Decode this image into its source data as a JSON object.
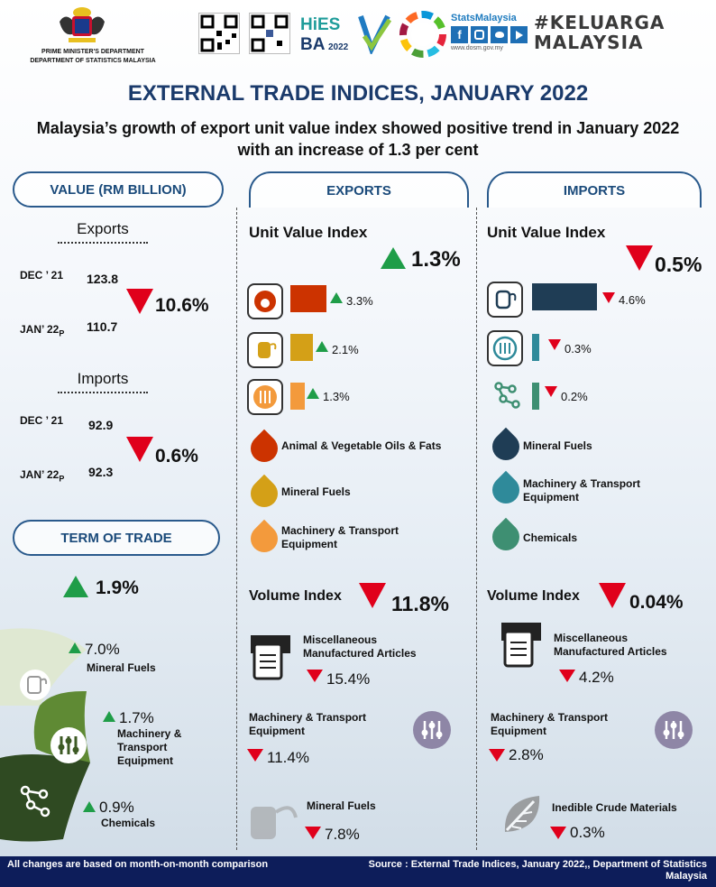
{
  "header": {
    "dept_line1": "PRIME MINISTER'S DEPARTMENT",
    "dept_line2": "DEPARTMENT OF STATISTICS MALAYSIA",
    "hies_logo": "HIES BA 2022",
    "stats_brand": "StatsMalaysia",
    "stats_url": "www.dosm.gov.my",
    "keluarga": "#KELUARGA MALAYSIA"
  },
  "title": "EXTERNAL TRADE INDICES, JANUARY 2022",
  "subtitle": "Malaysia’s growth of export unit value index showed positive trend in January 2022 with an increase of 1.3 per cent",
  "value_section": {
    "heading": "VALUE (RM BILLION)",
    "exports_label": "Exports",
    "exports_rows": [
      {
        "month": "DEC ’ 21",
        "value": "123.8"
      },
      {
        "month": "JAN’ 22",
        "suffix": "P",
        "value": "110.7"
      }
    ],
    "exports_change": "10.6%",
    "imports_label": "Imports",
    "imports_rows": [
      {
        "month": "DEC ’ 21",
        "value": "92.9"
      },
      {
        "month": "JAN’ 22",
        "suffix": "P",
        "value": "92.3"
      }
    ],
    "imports_change": "0.6%"
  },
  "term_of_trade": {
    "heading": "TERM OF TRADE",
    "change": "1.9%",
    "items": [
      {
        "pct": "7.0%",
        "label": "Mineral Fuels",
        "direction": "up"
      },
      {
        "pct": "1.7%",
        "label": "Machinery & Transport Equipment",
        "label_lines": [
          "Machinery &",
          "Transport",
          "Equipment"
        ],
        "direction": "up"
      },
      {
        "pct": "0.9%",
        "label": "Chemicals",
        "direction": "up"
      }
    ]
  },
  "exports": {
    "heading": "EXPORTS",
    "uvi_label": "Unit Value Index",
    "uvi_change": "1.3%",
    "uvi_bars": [
      {
        "pct": "3.3%",
        "direction": "up",
        "color": "#cc3300",
        "level": 3.3
      },
      {
        "pct": "2.1%",
        "direction": "up",
        "color": "#d4a017",
        "level": 2.1
      },
      {
        "pct": "1.3%",
        "direction": "up",
        "color": "#f39a3c",
        "level": 1.3
      }
    ],
    "legend": [
      {
        "label": "Animal & Vegetable Oils & Fats",
        "color": "#cc3300"
      },
      {
        "label": "Mineral Fuels",
        "color": "#d4a017"
      },
      {
        "label": "Machinery & Transport Equipment",
        "label_lines": [
          "Machinery & Transport",
          "Equipment"
        ],
        "color": "#f39a3c"
      }
    ],
    "volume_label": "Volume Index",
    "volume_change": "11.8%",
    "volume_items": [
      {
        "label_lines": [
          "Miscellaneous",
          "Manufactured Articles"
        ],
        "pct": "15.4%"
      },
      {
        "label_lines": [
          "Machinery & Transport",
          "Equipment"
        ],
        "pct": "11.4%"
      },
      {
        "label_lines": [
          "Mineral Fuels"
        ],
        "pct": "7.8%"
      }
    ]
  },
  "imports": {
    "heading": "IMPORTS",
    "uvi_label": "Unit Value Index",
    "uvi_change": "0.5%",
    "uvi_bars": [
      {
        "pct": "4.6%",
        "direction": "down",
        "color": "#1f3d55",
        "level": 4.6
      },
      {
        "pct": "0.3%",
        "direction": "down",
        "color": "#2f8a9a",
        "level": 0.3
      },
      {
        "pct": "0.2%",
        "direction": "down",
        "color": "#3e8f72",
        "level": 0.2
      }
    ],
    "legend": [
      {
        "label": "Mineral Fuels",
        "color": "#1f3d55"
      },
      {
        "label": "Machinery & Transport Equipment",
        "label_lines": [
          "Machinery & Transport",
          "Equipment"
        ],
        "color": "#2f8a9a"
      },
      {
        "label": "Chemicals",
        "color": "#3e8f72"
      }
    ],
    "volume_label": "Volume Index",
    "volume_change": "0.04%",
    "volume_items": [
      {
        "label_lines": [
          "Miscellaneous",
          "Manufactured Articles"
        ],
        "pct": "4.2%"
      },
      {
        "label_lines": [
          "Machinery & Transport",
          "Equipment"
        ],
        "pct": "2.8%"
      },
      {
        "label_lines": [
          "Inedible Crude Materials"
        ],
        "pct": "0.3%"
      }
    ]
  },
  "footer": {
    "left": "All changes are based on month-on-month comparison",
    "right": "Source : External Trade Indices, January 2022,, Department of Statistics Malaysia"
  }
}
